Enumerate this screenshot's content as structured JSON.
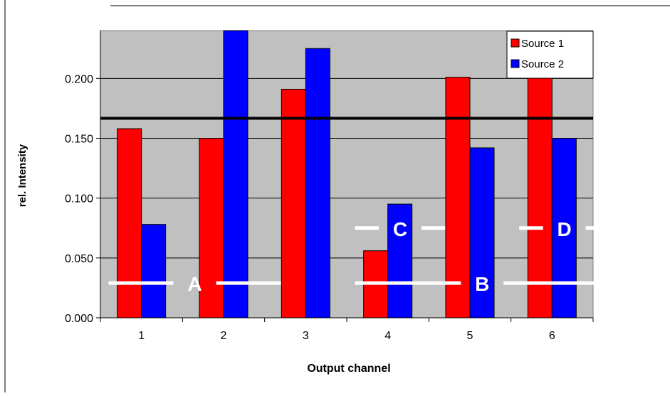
{
  "chart_data": {
    "type": "bar",
    "categories": [
      "1",
      "2",
      "3",
      "4",
      "5",
      "6"
    ],
    "series": [
      {
        "name": "Source 1",
        "color": "#ff0000",
        "values": [
          0.158,
          0.15,
          0.191,
          0.056,
          0.201,
          0.201
        ]
      },
      {
        "name": "Source 2",
        "color": "#0000ff",
        "values": [
          0.078,
          0.24,
          0.225,
          0.095,
          0.142,
          0.15
        ]
      }
    ],
    "xlabel": "Output channel",
    "ylabel": "rel. Intensity",
    "ylim": [
      0,
      0.24
    ],
    "yticks": [
      "0.000",
      "0.050",
      "0.100",
      "0.150",
      "0.200"
    ],
    "reference_line": {
      "value": 0.1667,
      "color": "#000000"
    },
    "grid": true,
    "plot_background": "#c0c0c0",
    "legend_position": "top-right",
    "annotations": [
      {
        "label": "A",
        "y": 0.029,
        "x_from": 0.6,
        "x_to": 2.7
      },
      {
        "label": "B",
        "y": 0.029,
        "x_from": 3.6,
        "x_to": 6.7
      },
      {
        "label": "C",
        "y": 0.075,
        "x_from": 3.6,
        "x_to": 4.7
      },
      {
        "label": "D",
        "y": 0.075,
        "x_from": 5.6,
        "x_to": 6.7
      }
    ],
    "annotation_color": "#ffffff"
  }
}
